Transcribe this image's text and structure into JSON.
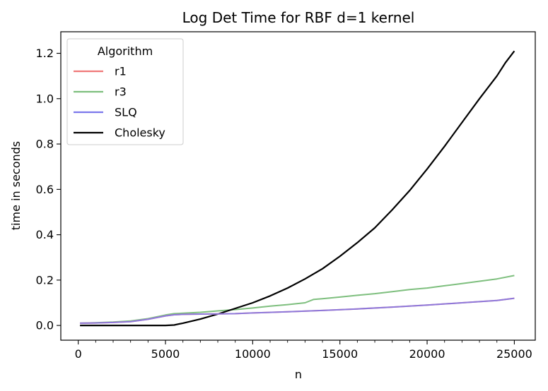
{
  "chart_data": {
    "type": "line",
    "title": "Log Det Time for RBF d=1 kernel",
    "xlabel": "n",
    "ylabel": "time in seconds",
    "xlim": [
      -1000,
      26200
    ],
    "ylim": [
      -0.065,
      1.295
    ],
    "x_ticks": [
      0,
      5000,
      10000,
      15000,
      20000,
      25000
    ],
    "x_tick_labels": [
      "0",
      "5000",
      "10000",
      "15000",
      "20000",
      "25000"
    ],
    "x_minor_ticks": [
      1000,
      2000,
      3000,
      4000,
      6000,
      7000,
      8000,
      9000,
      11000,
      12000,
      13000,
      14000,
      16000,
      17000,
      18000,
      19000,
      21000,
      22000,
      23000,
      24000
    ],
    "y_ticks": [
      0.0,
      0.2,
      0.4,
      0.6,
      0.8,
      1.0,
      1.2
    ],
    "y_tick_labels": [
      "0.0",
      "0.2",
      "0.4",
      "0.6",
      "0.8",
      "1.0",
      "1.2"
    ],
    "grid": false,
    "legend": {
      "title": "Algorithm",
      "position": "top-left"
    },
    "series": [
      {
        "name": "r1",
        "color": "#f07878",
        "x": [
          100,
          1000,
          2000,
          3000,
          4000,
          5000,
          5500,
          6000,
          7000,
          8000,
          9000,
          10000,
          12000,
          14000,
          16000,
          18000,
          20000,
          22000,
          24000,
          25000
        ],
        "y": [
          0.01,
          0.011,
          0.013,
          0.017,
          0.027,
          0.042,
          0.047,
          0.049,
          0.05,
          0.051,
          0.052,
          0.055,
          0.06,
          0.066,
          0.073,
          0.081,
          0.09,
          0.1,
          0.11,
          0.12
        ]
      },
      {
        "name": "r3",
        "color": "#7ebf7e",
        "x": [
          100,
          1000,
          2000,
          3000,
          4000,
          5000,
          5500,
          6000,
          7000,
          8000,
          9000,
          10000,
          11000,
          12000,
          13000,
          13500,
          14000,
          15000,
          16000,
          17000,
          18000,
          19000,
          20000,
          21000,
          22000,
          23000,
          24000,
          25000
        ],
        "y": [
          0.01,
          0.012,
          0.015,
          0.02,
          0.03,
          0.046,
          0.052,
          0.054,
          0.058,
          0.064,
          0.07,
          0.077,
          0.085,
          0.092,
          0.1,
          0.115,
          0.118,
          0.125,
          0.133,
          0.14,
          0.149,
          0.158,
          0.165,
          0.175,
          0.185,
          0.195,
          0.205,
          0.22
        ]
      },
      {
        "name": "SLQ",
        "color": "#7b78ec",
        "x": [
          100,
          1000,
          2000,
          3000,
          4000,
          5000,
          5500,
          6000,
          7000,
          8000,
          9000,
          10000,
          12000,
          14000,
          16000,
          18000,
          20000,
          22000,
          24000,
          25000
        ],
        "y": [
          0.01,
          0.011,
          0.013,
          0.017,
          0.027,
          0.042,
          0.047,
          0.049,
          0.05,
          0.051,
          0.052,
          0.055,
          0.06,
          0.066,
          0.073,
          0.081,
          0.09,
          0.1,
          0.11,
          0.12
        ]
      },
      {
        "name": "Cholesky",
        "color": "#000000",
        "x": [
          100,
          1000,
          2000,
          3000,
          4000,
          5000,
          5500,
          6000,
          7000,
          8000,
          9000,
          10000,
          11000,
          12000,
          13000,
          14000,
          15000,
          16000,
          17000,
          18000,
          19000,
          20000,
          21000,
          22000,
          23000,
          24000,
          24500,
          25000
        ],
        "y": [
          0.0,
          0.0,
          0.0,
          0.0,
          0.0,
          0.0,
          0.002,
          0.01,
          0.028,
          0.05,
          0.075,
          0.1,
          0.13,
          0.165,
          0.205,
          0.25,
          0.305,
          0.365,
          0.43,
          0.51,
          0.595,
          0.69,
          0.79,
          0.895,
          1.0,
          1.1,
          1.16,
          1.21
        ]
      }
    ]
  }
}
